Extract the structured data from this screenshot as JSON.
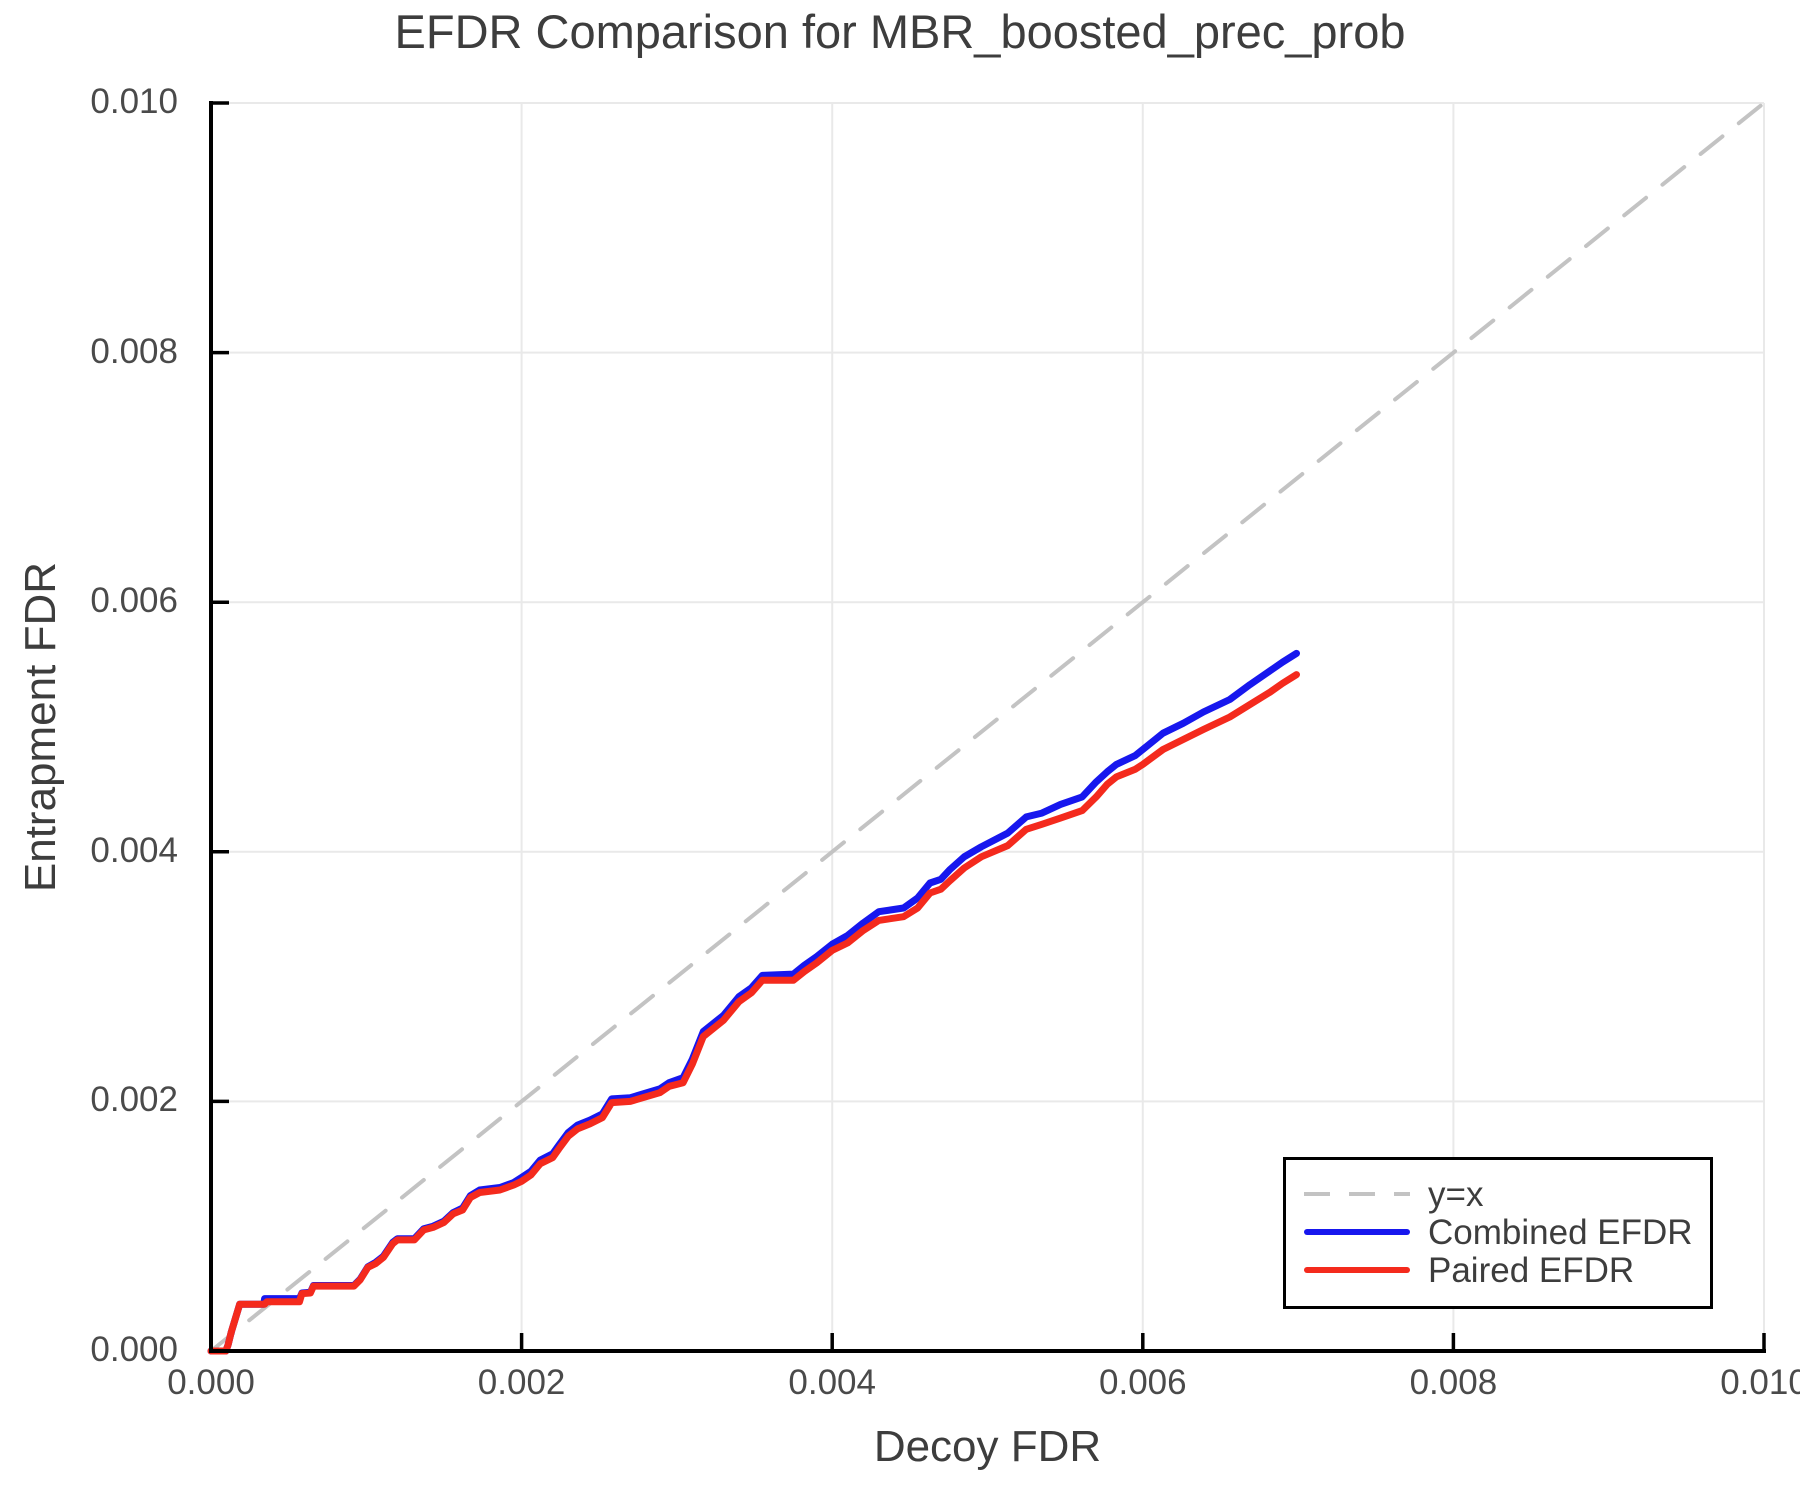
{
  "chart_data": {
    "type": "line",
    "title": "EFDR Comparison for MBR_boosted_prec_prob",
    "xlabel": "Decoy FDR",
    "ylabel": "Entrapment FDR",
    "xlim": [
      0.0,
      0.01
    ],
    "ylim": [
      0.0,
      0.01
    ],
    "grid": true,
    "legend_position": "lower right",
    "x_tick_values": [
      0.0,
      0.002,
      0.004,
      0.006,
      0.008,
      0.01
    ],
    "x_tick_labels": [
      "0.000",
      "0.002",
      "0.004",
      "0.006",
      "0.008",
      "0.010"
    ],
    "y_tick_values": [
      0.0,
      0.002,
      0.004,
      0.006,
      0.008,
      0.01
    ],
    "y_tick_labels": [
      "0.000",
      "0.002",
      "0.004",
      "0.006",
      "0.008",
      "0.010"
    ],
    "series": [
      {
        "name": "y=x",
        "role": "reference-diagonal",
        "line_style": "dashed",
        "color": "#c3c3c3",
        "width": 4,
        "x": [
          0.0,
          0.01
        ],
        "y": [
          0.0,
          0.01
        ]
      },
      {
        "name": "Combined EFDR",
        "role": "data",
        "line_style": "solid",
        "color": "#1717ee",
        "width": 7,
        "x": [
          0.0,
          9.5e-05,
          0.00011,
          0.00013,
          0.000185,
          0.00034,
          0.000345,
          0.00036,
          0.00057,
          0.000585,
          0.00064,
          0.00066,
          0.00092,
          0.00096,
          0.00101,
          0.00106,
          0.00111,
          0.00117,
          0.0012,
          0.00131,
          0.00137,
          0.00143,
          0.0015,
          0.00156,
          0.00162,
          0.00167,
          0.00173,
          0.00186,
          0.00195,
          0.002,
          0.00206,
          0.00212,
          0.0022,
          0.00224,
          0.0023,
          0.00236,
          0.00244,
          0.00252,
          0.00258,
          0.0027,
          0.00289,
          0.00295,
          0.00304,
          0.0031,
          0.00317,
          0.0033,
          0.0034,
          0.00348,
          0.00355,
          0.00375,
          0.00382,
          0.0039,
          0.004,
          0.0041,
          0.0042,
          0.0043,
          0.00446,
          0.00455,
          0.00463,
          0.0047,
          0.00476,
          0.00485,
          0.00496,
          0.00513,
          0.00525,
          0.00535,
          0.00547,
          0.00561,
          0.0057,
          0.00577,
          0.00583,
          0.00595,
          0.006,
          0.00613,
          0.00626,
          0.00639,
          0.00656,
          0.00669,
          0.00682,
          0.0069,
          0.00699
        ],
        "y": [
          0.0,
          0.0,
          5e-05,
          0.00015,
          0.000375,
          0.000375,
          0.00042,
          0.00042,
          0.00042,
          0.000465,
          0.00047,
          0.000525,
          0.000525,
          0.000575,
          0.000675,
          0.00071,
          0.00076,
          0.00087,
          0.0009,
          0.0009,
          0.00098,
          0.001,
          0.00104,
          0.00111,
          0.001145,
          0.001245,
          0.00129,
          0.00131,
          0.00135,
          0.00139,
          0.00144,
          0.00153,
          0.00158,
          0.00165,
          0.00175,
          0.00181,
          0.00185,
          0.0019,
          0.00202,
          0.00203,
          0.0021,
          0.00215,
          0.00219,
          0.00234,
          0.00256,
          0.00269,
          0.00284,
          0.00291,
          0.00301,
          0.00302,
          0.00309,
          0.00316,
          0.00326,
          0.00333,
          0.00343,
          0.00352,
          0.00355,
          0.00363,
          0.00375,
          0.00378,
          0.00386,
          0.00396,
          0.00404,
          0.00415,
          0.00428,
          0.00431,
          0.00438,
          0.00444,
          0.00456,
          0.00464,
          0.0047,
          0.00477,
          0.00482,
          0.00495,
          0.00503,
          0.00512,
          0.00522,
          0.00534,
          0.00545,
          0.00552,
          0.00559
        ]
      },
      {
        "name": "Paired EFDR",
        "role": "data",
        "line_style": "solid",
        "color": "#f42a1d",
        "width": 7,
        "x": [
          0.0,
          9.5e-05,
          0.00011,
          0.00013,
          0.000185,
          0.00034,
          0.000345,
          0.00036,
          0.00057,
          0.000585,
          0.00064,
          0.00066,
          0.00092,
          0.00096,
          0.00101,
          0.00106,
          0.00111,
          0.00117,
          0.0012,
          0.00131,
          0.00137,
          0.00143,
          0.0015,
          0.00156,
          0.00162,
          0.00167,
          0.00173,
          0.00186,
          0.00195,
          0.002,
          0.00206,
          0.00212,
          0.0022,
          0.00224,
          0.0023,
          0.00236,
          0.00244,
          0.00252,
          0.00258,
          0.0027,
          0.00289,
          0.00295,
          0.00304,
          0.0031,
          0.00317,
          0.0033,
          0.0034,
          0.00348,
          0.00355,
          0.00375,
          0.00382,
          0.0039,
          0.004,
          0.0041,
          0.0042,
          0.0043,
          0.00446,
          0.00455,
          0.00463,
          0.0047,
          0.00476,
          0.00485,
          0.00496,
          0.00513,
          0.00525,
          0.00535,
          0.00547,
          0.00561,
          0.0057,
          0.00577,
          0.00583,
          0.00595,
          0.006,
          0.00613,
          0.00626,
          0.00639,
          0.00656,
          0.00669,
          0.00682,
          0.0069,
          0.00699
        ],
        "y": [
          0.0,
          0.0,
          5e-05,
          0.00015,
          0.000375,
          0.000375,
          0.000375,
          0.000395,
          0.000395,
          0.00046,
          0.000465,
          0.00052,
          0.00052,
          0.00057,
          0.00067,
          0.0007,
          0.00075,
          0.00086,
          0.00089,
          0.00089,
          0.00097,
          0.00099,
          0.00103,
          0.0011,
          0.00113,
          0.00123,
          0.00127,
          0.00129,
          0.00133,
          0.00136,
          0.00141,
          0.0015,
          0.00155,
          0.00162,
          0.00172,
          0.00178,
          0.00182,
          0.00187,
          0.00199,
          0.002,
          0.00207,
          0.00212,
          0.00215,
          0.0023,
          0.00252,
          0.00265,
          0.0028,
          0.00287,
          0.00297,
          0.00297,
          0.00304,
          0.00311,
          0.00321,
          0.00327,
          0.00337,
          0.00345,
          0.00348,
          0.00355,
          0.00367,
          0.0037,
          0.00377,
          0.00387,
          0.00396,
          0.00405,
          0.00418,
          0.00422,
          0.00427,
          0.00433,
          0.00444,
          0.00454,
          0.0046,
          0.00466,
          0.0047,
          0.00482,
          0.0049,
          0.00498,
          0.00508,
          0.00518,
          0.00528,
          0.00535,
          0.00542
        ]
      }
    ]
  },
  "colors": {
    "text": "#3d3d3d",
    "tick_text": "#4a4a4a",
    "grid": "#e9e9e9",
    "spine": "#000000",
    "background": "#ffffff"
  }
}
